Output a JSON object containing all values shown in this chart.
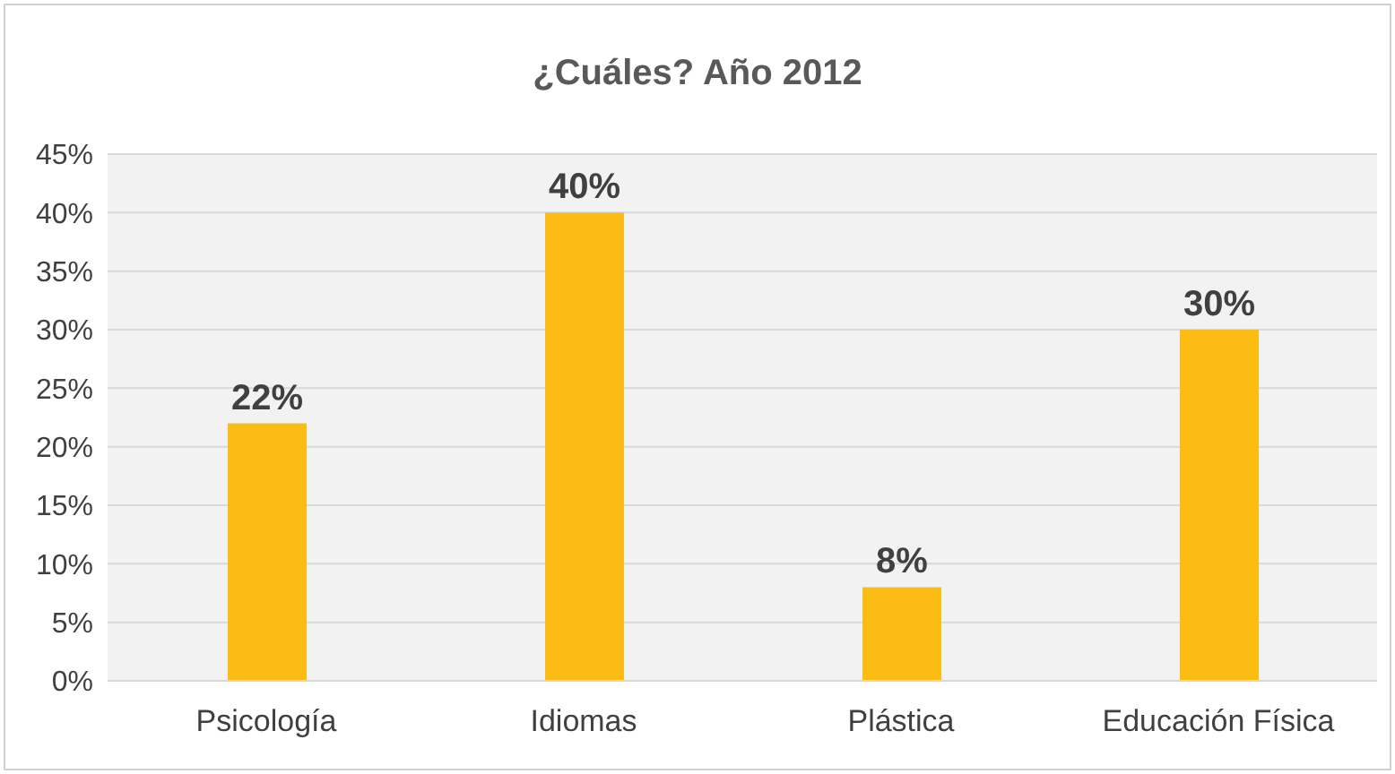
{
  "chart_data": {
    "type": "bar",
    "title": "¿Cuáles? Año 2012",
    "categories": [
      "Psicología",
      "Idiomas",
      "Plástica",
      "Educación Física"
    ],
    "values": [
      22,
      40,
      8,
      30
    ],
    "value_labels": [
      "22%",
      "40%",
      "8%",
      "30%"
    ],
    "color": "#fbbd13",
    "ylim": [
      0,
      45
    ],
    "yticks": [
      {
        "value": 0,
        "label": "0%"
      },
      {
        "value": 5,
        "label": "5%"
      },
      {
        "value": 10,
        "label": "10%"
      },
      {
        "value": 15,
        "label": "15%"
      },
      {
        "value": 20,
        "label": "20%"
      },
      {
        "value": 25,
        "label": "25%"
      },
      {
        "value": 30,
        "label": "30%"
      },
      {
        "value": 35,
        "label": "35%"
      },
      {
        "value": 40,
        "label": "40%"
      },
      {
        "value": 45,
        "label": "45%"
      }
    ],
    "grid": "y",
    "legend": false
  }
}
